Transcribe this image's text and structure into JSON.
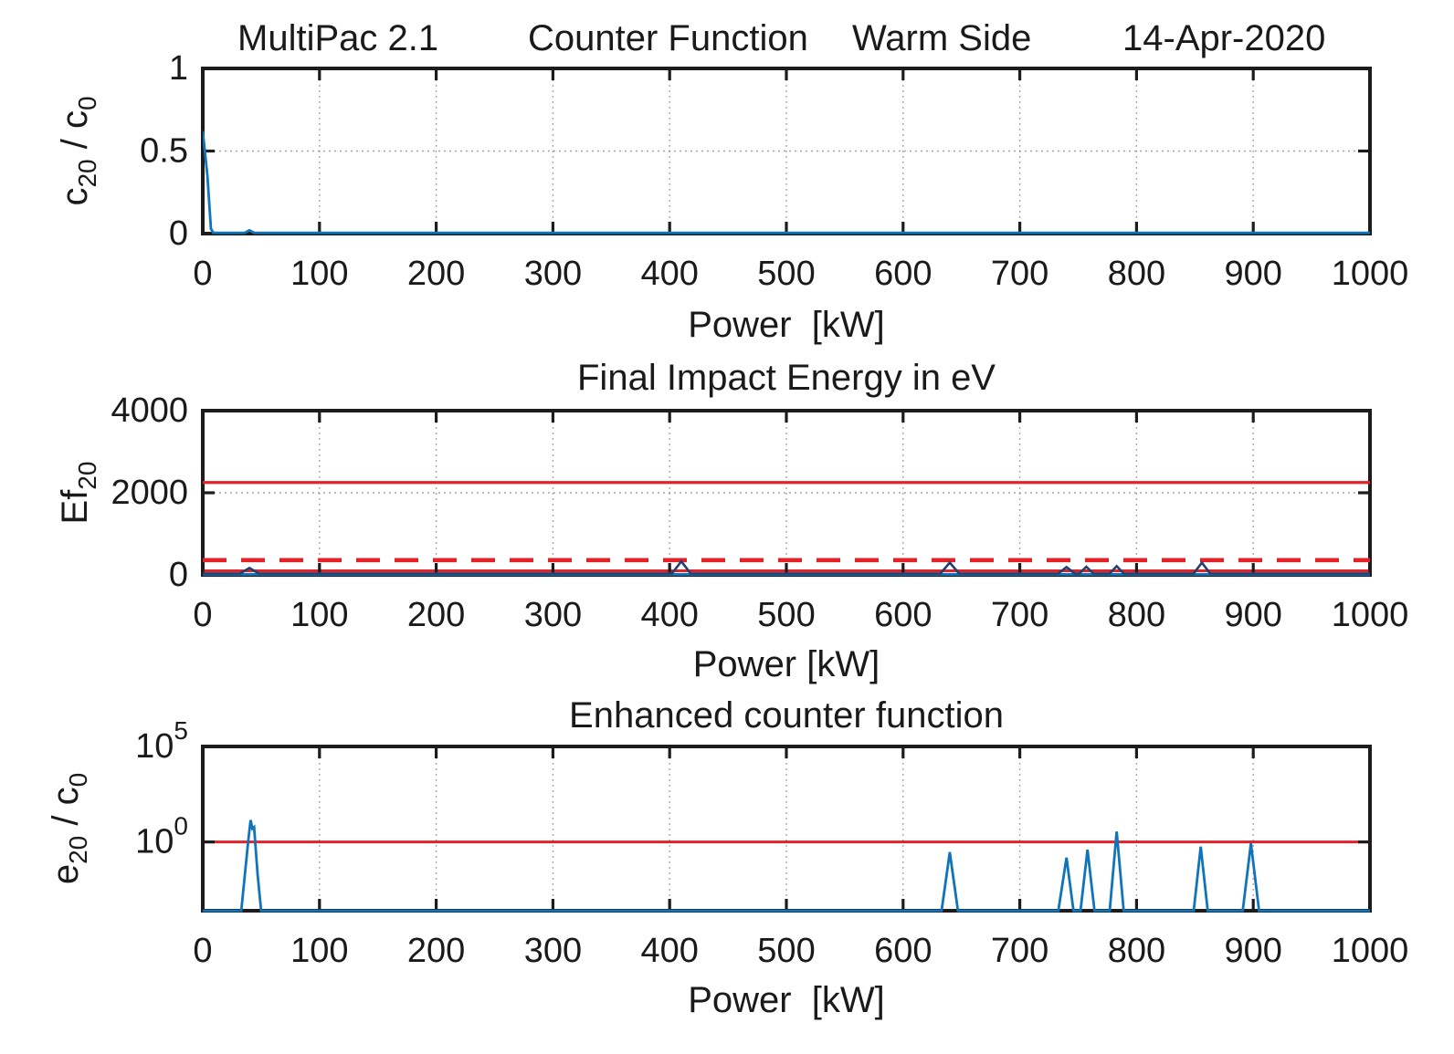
{
  "figure": {
    "background": "#ffffff",
    "header": {
      "app": "MultiPac 2.1",
      "analysis": "Counter Function",
      "side": "Warm Side",
      "date": "14-Apr-2020"
    }
  },
  "colors": {
    "blue": "#0f74ba",
    "navy": "#24406f",
    "red": "#e32126",
    "axis": "#1c1c1c",
    "grid": "#7d7d7d"
  },
  "chart_data": [
    {
      "name": "counter-function",
      "type": "line",
      "title_parts": [
        "MultiPac 2.1",
        "Counter Function",
        "Warm Side",
        "14-Apr-2020"
      ],
      "xlabel": "Power  [kW]",
      "ylabel_parts": [
        {
          "t": "c"
        },
        {
          "t": "20",
          "sub": true
        },
        {
          "t": " / c"
        },
        {
          "t": "0",
          "sub": true
        }
      ],
      "xlim": [
        0,
        1000
      ],
      "xticks": [
        0,
        100,
        200,
        300,
        400,
        500,
        600,
        700,
        800,
        900,
        1000
      ],
      "yscale": "linear",
      "ylim": [
        0,
        1
      ],
      "yticks": [
        {
          "v": 0,
          "label": "0"
        },
        {
          "v": 0.5,
          "label": "0.5"
        },
        {
          "v": 1,
          "label": "1"
        }
      ],
      "grid": {
        "x": true,
        "y": true
      },
      "hlines": [],
      "series": [
        {
          "name": "counter-line",
          "color": "blue",
          "width": 2.8,
          "x": [
            0,
            4,
            7,
            9,
            36,
            40,
            44,
            1000
          ],
          "y": [
            0.62,
            0.35,
            0.03,
            0.005,
            0.005,
            0.02,
            0.005,
            0.005
          ]
        }
      ]
    },
    {
      "name": "final-impact-energy",
      "type": "line",
      "title": "Final Impact Energy in eV",
      "xlabel": "Power [kW]",
      "ylabel_parts": [
        {
          "t": "Ef"
        },
        {
          "t": "20",
          "sub": true
        }
      ],
      "xlim": [
        0,
        1000
      ],
      "xticks": [
        0,
        100,
        200,
        300,
        400,
        500,
        600,
        700,
        800,
        900,
        1000
      ],
      "yscale": "linear",
      "ylim": [
        0,
        4000
      ],
      "yticks": [
        {
          "v": 0,
          "label": "0"
        },
        {
          "v": 2000,
          "label": "2000"
        },
        {
          "v": 4000,
          "label": "4000"
        }
      ],
      "grid": {
        "x": true,
        "y": true
      },
      "hlines": [
        {
          "name": "upper-threshold-line",
          "y": 2250,
          "color": "red",
          "width": 3.2,
          "dash": null
        },
        {
          "name": "dashed-threshold-line",
          "y": 360,
          "color": "red",
          "width": 4.6,
          "dash": "26 16"
        },
        {
          "name": "lower-threshold-line",
          "y": 100,
          "color": "red",
          "width": 3,
          "dash": null
        }
      ],
      "series": [
        {
          "name": "baseline-line",
          "color": "blue",
          "width": 3,
          "x": [
            0,
            1000
          ],
          "y": [
            15,
            15
          ]
        },
        {
          "name": "impact-energy-line",
          "color": "navy",
          "width": 2.6,
          "x": [
            0,
            32,
            40,
            48,
            402,
            410,
            418,
            632,
            640,
            648,
            733,
            740,
            747,
            751,
            757,
            763,
            777,
            783,
            789,
            849,
            856,
            863,
            1000
          ],
          "y": [
            35,
            35,
            170,
            35,
            35,
            330,
            35,
            35,
            300,
            35,
            35,
            190,
            35,
            35,
            200,
            35,
            35,
            215,
            35,
            35,
            300,
            35,
            35
          ]
        }
      ]
    },
    {
      "name": "enhanced-counter",
      "type": "line",
      "title": "Enhanced counter function",
      "xlabel": "Power  [kW]",
      "ylabel_parts": [
        {
          "t": "e"
        },
        {
          "t": "20",
          "sub": true
        },
        {
          "t": " / c"
        },
        {
          "t": "0",
          "sub": true
        }
      ],
      "xlim": [
        0,
        1000
      ],
      "xticks": [
        0,
        100,
        200,
        300,
        400,
        500,
        600,
        700,
        800,
        900,
        1000
      ],
      "yscale": "log",
      "ylim": [
        0.00025,
        100000
      ],
      "yticks": [
        {
          "v": 1,
          "label": "10",
          "sup": "0"
        },
        {
          "v": 100000,
          "label": "10",
          "sup": "5"
        }
      ],
      "grid": {
        "x": true,
        "y": true
      },
      "hlines": [
        {
          "name": "unity-threshold-line",
          "y": 1,
          "color": "red",
          "width": 3,
          "dash": null
        }
      ],
      "series": [
        {
          "name": "enhanced-counter-line",
          "color": "blue",
          "width": 2.8,
          "x": [
            0,
            33,
            39,
            41,
            42.5,
            44,
            47,
            50,
            633,
            640,
            647,
            733,
            740,
            746,
            752,
            758,
            764,
            777,
            783,
            789,
            849,
            855,
            861,
            891,
            898,
            905,
            1000
          ],
          "y": [
            0.00025,
            0.00025,
            1.2,
            14,
            5,
            6,
            0.02,
            0.00025,
            0.00025,
            0.29,
            0.00025,
            0.00025,
            0.15,
            0.00025,
            0.00025,
            0.39,
            0.00025,
            0.00025,
            3.5,
            0.00025,
            0.00025,
            0.57,
            0.00025,
            0.00025,
            0.85,
            0.00025,
            0.00025
          ]
        }
      ]
    }
  ]
}
